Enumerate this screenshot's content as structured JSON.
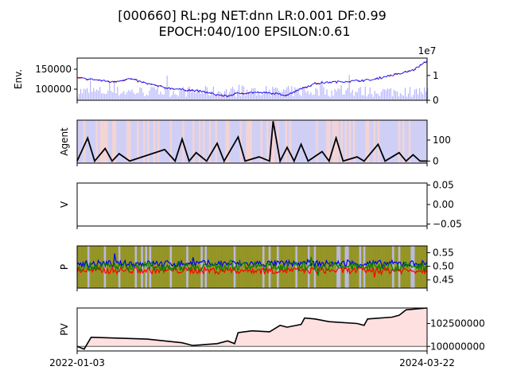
{
  "figure": {
    "title_line1": "[000660] RL:pg NET:dnn LR:0.001 DF:0.99",
    "title_line2": "EPOCH:040/100 EPSILON:0.61",
    "x_start_label": "2022-01-03",
    "x_end_label": "2024-03-22"
  },
  "chart_data": [
    {
      "type": "line",
      "ylabel": "Env.",
      "left_ticks": [
        "150000",
        "100000"
      ],
      "left_tick_values": [
        150000,
        100000
      ],
      "ylim_left": [
        72000,
        178000
      ],
      "right_ticks": [
        "0",
        "1"
      ],
      "right_tick_values": [
        0,
        1
      ],
      "ylim_right": [
        0,
        1.7
      ],
      "right_offset_label": "1e7",
      "colors": {
        "price": "#1a1aff",
        "signal": "#ee1111",
        "volume": "#b3b3ff"
      },
      "series": [
        {
          "role": "price",
          "points": [
            [
              0,
              128000
            ],
            [
              0.05,
              124000
            ],
            [
              0.1,
              118000
            ],
            [
              0.15,
              126000
            ],
            [
              0.2,
              114000
            ],
            [
              0.25,
              104000
            ],
            [
              0.3,
              99000
            ],
            [
              0.35,
              95000
            ],
            [
              0.4,
              86000
            ],
            [
              0.43,
              82000
            ],
            [
              0.45,
              88000
            ],
            [
              0.5,
              92000
            ],
            [
              0.55,
              90000
            ],
            [
              0.6,
              85000
            ],
            [
              0.63,
              98000
            ],
            [
              0.68,
              114000
            ],
            [
              0.73,
              118000
            ],
            [
              0.78,
              120000
            ],
            [
              0.85,
              124000
            ],
            [
              0.88,
              132000
            ],
            [
              0.92,
              138000
            ],
            [
              0.96,
              148000
            ],
            [
              1,
              170000
            ]
          ]
        }
      ]
    },
    {
      "type": "line",
      "ylabel": "Agent",
      "right_ticks": [
        "0",
        "100"
      ],
      "right_tick_values": [
        0,
        100
      ],
      "ylim_right": [
        -10,
        195
      ],
      "colors": {
        "line": "#000000",
        "band_a": "#c8c8f5",
        "band_b": "#f2cccc"
      },
      "series": [
        {
          "role": "agent",
          "points": [
            [
              0,
              0
            ],
            [
              0.03,
              110
            ],
            [
              0.05,
              0
            ],
            [
              0.08,
              60
            ],
            [
              0.1,
              0
            ],
            [
              0.12,
              35
            ],
            [
              0.15,
              0
            ],
            [
              0.25,
              55
            ],
            [
              0.28,
              0
            ],
            [
              0.3,
              105
            ],
            [
              0.32,
              0
            ],
            [
              0.34,
              40
            ],
            [
              0.37,
              0
            ],
            [
              0.4,
              85
            ],
            [
              0.42,
              0
            ],
            [
              0.46,
              115
            ],
            [
              0.48,
              0
            ],
            [
              0.52,
              20
            ],
            [
              0.55,
              0
            ],
            [
              0.56,
              190
            ],
            [
              0.58,
              0
            ],
            [
              0.6,
              65
            ],
            [
              0.62,
              0
            ],
            [
              0.64,
              80
            ],
            [
              0.66,
              0
            ],
            [
              0.7,
              45
            ],
            [
              0.72,
              0
            ],
            [
              0.74,
              110
            ],
            [
              0.76,
              0
            ],
            [
              0.8,
              20
            ],
            [
              0.82,
              0
            ],
            [
              0.86,
              80
            ],
            [
              0.88,
              0
            ],
            [
              0.92,
              40
            ],
            [
              0.94,
              0
            ],
            [
              0.96,
              30
            ],
            [
              0.98,
              0
            ],
            [
              1,
              0
            ]
          ]
        }
      ]
    },
    {
      "type": "line",
      "ylabel": "V",
      "right_ticks": [
        "0.05",
        "0.00",
        "−0.05"
      ],
      "right_tick_values": [
        0.05,
        0.0,
        -0.05
      ],
      "ylim_right": [
        -0.055,
        0.055
      ],
      "series": []
    },
    {
      "type": "line",
      "ylabel": "P",
      "right_ticks": [
        "0.55",
        "0.50",
        "0.45"
      ],
      "right_tick_values": [
        0.55,
        0.5,
        0.45
      ],
      "ylim_right": [
        0.42,
        0.575
      ],
      "colors": {
        "blue": "#0000ee",
        "green": "#008000",
        "red": "#ff0000",
        "band": "#8b8b12",
        "band_alt": "#b4b4d8"
      },
      "series": [
        {
          "role": "blue",
          "base": 0.51
        },
        {
          "role": "green",
          "base": 0.5
        },
        {
          "role": "red",
          "base": 0.485
        }
      ]
    },
    {
      "type": "area",
      "ylabel": "PV",
      "right_ticks": [
        "102500000",
        "100000000"
      ],
      "right_tick_values": [
        102500000,
        100000000
      ],
      "ylim_right": [
        99500000,
        104200000
      ],
      "baseline": 100000000,
      "colors": {
        "line": "#000000",
        "fill": "#ffe0e0",
        "baseline": "#555555"
      },
      "series": [
        {
          "role": "pv",
          "points": [
            [
              0,
              100000000
            ],
            [
              0.02,
              99700000
            ],
            [
              0.04,
              101000000
            ],
            [
              0.2,
              100800000
            ],
            [
              0.3,
              100400000
            ],
            [
              0.33,
              100100000
            ],
            [
              0.4,
              100300000
            ],
            [
              0.43,
              100600000
            ],
            [
              0.45,
              100300000
            ],
            [
              0.46,
              101500000
            ],
            [
              0.5,
              101700000
            ],
            [
              0.55,
              101600000
            ],
            [
              0.58,
              102300000
            ],
            [
              0.6,
              102100000
            ],
            [
              0.64,
              102400000
            ],
            [
              0.65,
              103100000
            ],
            [
              0.68,
              103000000
            ],
            [
              0.72,
              102700000
            ],
            [
              0.8,
              102500000
            ],
            [
              0.82,
              102300000
            ],
            [
              0.83,
              103000000
            ],
            [
              0.9,
              103200000
            ],
            [
              0.92,
              103400000
            ],
            [
              0.94,
              104000000
            ],
            [
              1,
              104200000
            ]
          ]
        }
      ]
    }
  ]
}
